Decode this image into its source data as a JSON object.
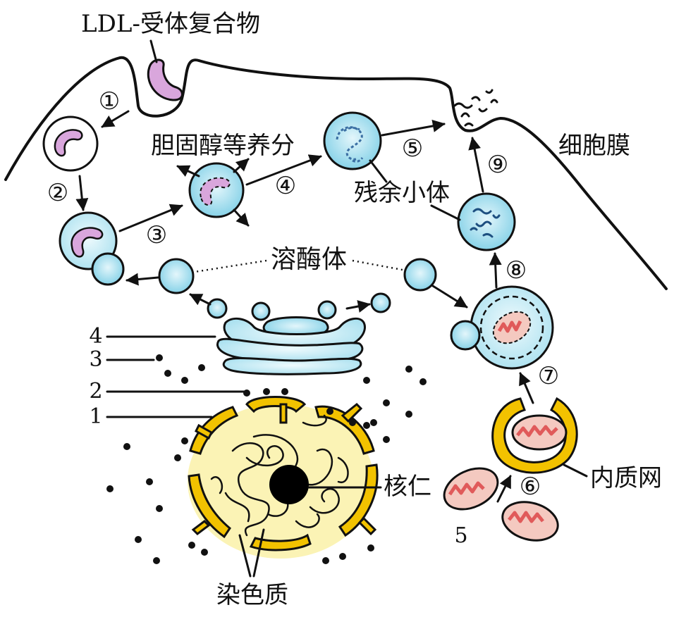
{
  "labels": {
    "ldl_complex": "LDL-受体复合物",
    "cell_membrane": "细胞膜",
    "nutrients": "胆固醇等养分",
    "residual_body": "残余小体",
    "lysosome": "溶酶体",
    "nucleolus": "核仁",
    "chromatin": "染色质",
    "er": "内质网",
    "num_4": "4",
    "num_3": "3",
    "num_2": "2",
    "num_1": "1",
    "num_5": "5"
  },
  "steps": {
    "s1": "①",
    "s2": "②",
    "s3": "③",
    "s4": "④",
    "s5": "⑤",
    "s6": "⑥",
    "s7": "⑦",
    "s8": "⑧",
    "s9": "⑨"
  },
  "colors": {
    "vesicle_blue": "#8fd6ea",
    "vesicle_blue_light": "#cdeff7",
    "ldl_purple": "#d9a6dc",
    "nucleus_yellow": "#f2c200",
    "nucleus_pale": "#fbf3b5",
    "mito_red": "#e05a5a",
    "mito_pink": "#f4c9c0"
  }
}
